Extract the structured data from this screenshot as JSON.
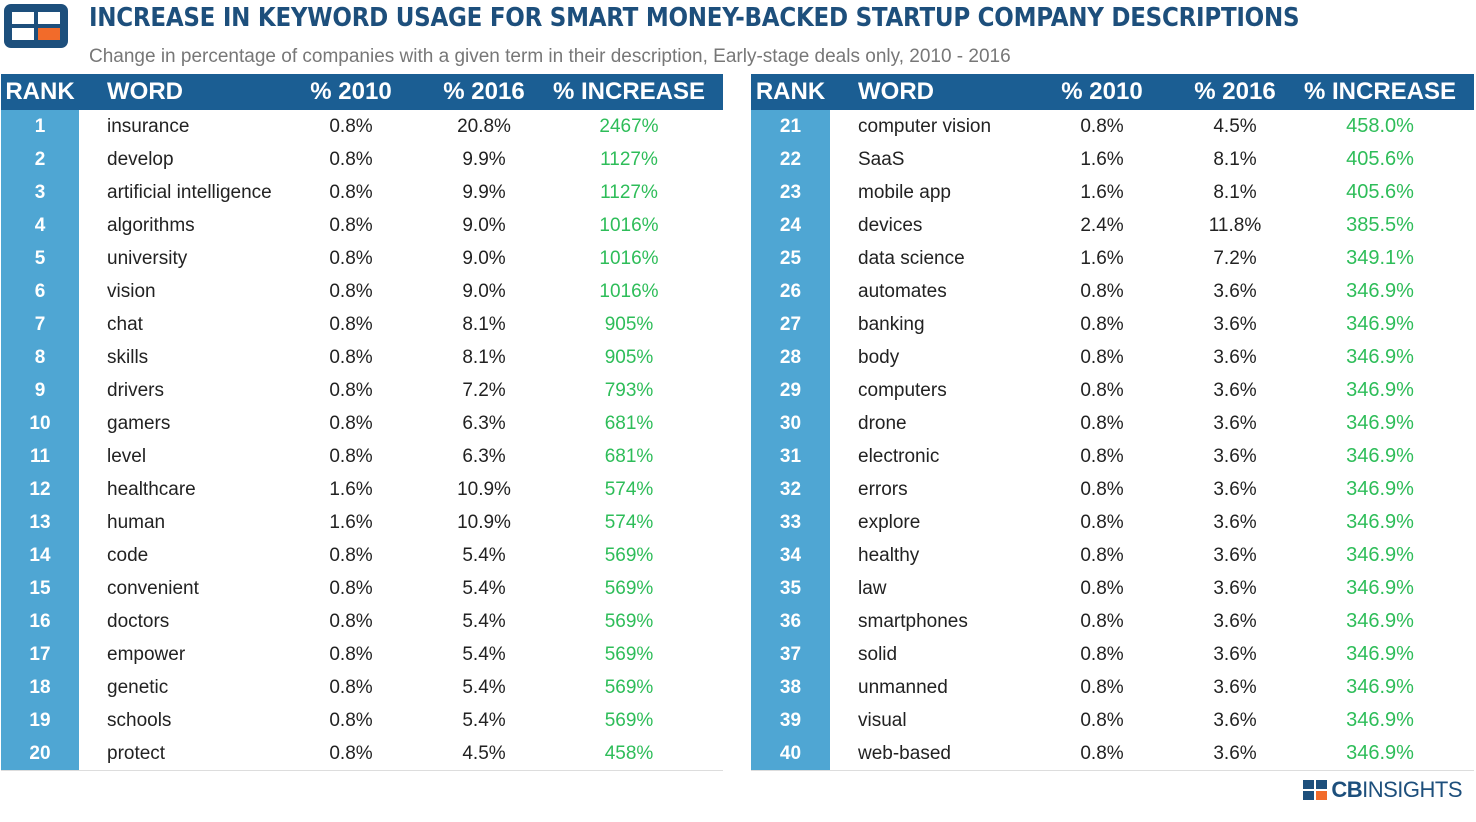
{
  "header": {
    "title": "INCREASE IN KEYWORD USAGE FOR SMART MONEY-BACKED STARTUP COMPANY DESCRIPTIONS",
    "subtitle": "Change in percentage of companies with a given term in their description, Early-stage deals only, 2010 - 2016"
  },
  "colors": {
    "header_bg": "#1b5e93",
    "rank_bg": "#4fa6d3",
    "increase": "#2ebd59",
    "title": "#1d4f7c",
    "logo_orange": "#f26b2a"
  },
  "icons": {
    "logo": "cb-insights-logo-icon"
  },
  "chart_data": {
    "type": "table",
    "columns": [
      "RANK",
      "WORD",
      "% 2010",
      "% 2016",
      "% INCREASE"
    ],
    "rows_left": [
      [
        "1",
        "insurance",
        "0.8%",
        "20.8%",
        "2467%"
      ],
      [
        "2",
        "develop",
        "0.8%",
        "9.9%",
        "1127%"
      ],
      [
        "3",
        "artificial intelligence",
        "0.8%",
        "9.9%",
        "1127%"
      ],
      [
        "4",
        "algorithms",
        "0.8%",
        "9.0%",
        "1016%"
      ],
      [
        "5",
        "university",
        "0.8%",
        "9.0%",
        "1016%"
      ],
      [
        "6",
        "vision",
        "0.8%",
        "9.0%",
        "1016%"
      ],
      [
        "7",
        "chat",
        "0.8%",
        "8.1%",
        "905%"
      ],
      [
        "8",
        "skills",
        "0.8%",
        "8.1%",
        "905%"
      ],
      [
        "9",
        "drivers",
        "0.8%",
        "7.2%",
        "793%"
      ],
      [
        "10",
        "gamers",
        "0.8%",
        "6.3%",
        "681%"
      ],
      [
        "11",
        "level",
        "0.8%",
        "6.3%",
        "681%"
      ],
      [
        "12",
        "healthcare",
        "1.6%",
        "10.9%",
        "574%"
      ],
      [
        "13",
        "human",
        "1.6%",
        "10.9%",
        "574%"
      ],
      [
        "14",
        "code",
        "0.8%",
        "5.4%",
        "569%"
      ],
      [
        "15",
        "convenient",
        "0.8%",
        "5.4%",
        "569%"
      ],
      [
        "16",
        "doctors",
        "0.8%",
        "5.4%",
        "569%"
      ],
      [
        "17",
        "empower",
        "0.8%",
        "5.4%",
        "569%"
      ],
      [
        "18",
        "genetic",
        "0.8%",
        "5.4%",
        "569%"
      ],
      [
        "19",
        "schools",
        "0.8%",
        "5.4%",
        "569%"
      ],
      [
        "20",
        "protect",
        "0.8%",
        "4.5%",
        "458%"
      ]
    ],
    "rows_right": [
      [
        "21",
        "computer vision",
        "0.8%",
        "4.5%",
        "458.0%"
      ],
      [
        "22",
        "SaaS",
        "1.6%",
        "8.1%",
        "405.6%"
      ],
      [
        "23",
        "mobile app",
        "1.6%",
        "8.1%",
        "405.6%"
      ],
      [
        "24",
        "devices",
        "2.4%",
        "11.8%",
        "385.5%"
      ],
      [
        "25",
        "data science",
        "1.6%",
        "7.2%",
        "349.1%"
      ],
      [
        "26",
        "automates",
        "0.8%",
        "3.6%",
        "346.9%"
      ],
      [
        "27",
        "banking",
        "0.8%",
        "3.6%",
        "346.9%"
      ],
      [
        "28",
        "body",
        "0.8%",
        "3.6%",
        "346.9%"
      ],
      [
        "29",
        "computers",
        "0.8%",
        "3.6%",
        "346.9%"
      ],
      [
        "30",
        "drone",
        "0.8%",
        "3.6%",
        "346.9%"
      ],
      [
        "31",
        "electronic",
        "0.8%",
        "3.6%",
        "346.9%"
      ],
      [
        "32",
        "errors",
        "0.8%",
        "3.6%",
        "346.9%"
      ],
      [
        "33",
        "explore",
        "0.8%",
        "3.6%",
        "346.9%"
      ],
      [
        "34",
        "healthy",
        "0.8%",
        "3.6%",
        "346.9%"
      ],
      [
        "35",
        "law",
        "0.8%",
        "3.6%",
        "346.9%"
      ],
      [
        "36",
        "smartphones",
        "0.8%",
        "3.6%",
        "346.9%"
      ],
      [
        "37",
        "solid",
        "0.8%",
        "3.6%",
        "346.9%"
      ],
      [
        "38",
        "unmanned",
        "0.8%",
        "3.6%",
        "346.9%"
      ],
      [
        "39",
        "visual",
        "0.8%",
        "3.6%",
        "346.9%"
      ],
      [
        "40",
        "web-based",
        "0.8%",
        "3.6%",
        "346.9%"
      ]
    ]
  },
  "footer": {
    "brand_bold": "CB",
    "brand_rest": "INSIGHTS"
  }
}
